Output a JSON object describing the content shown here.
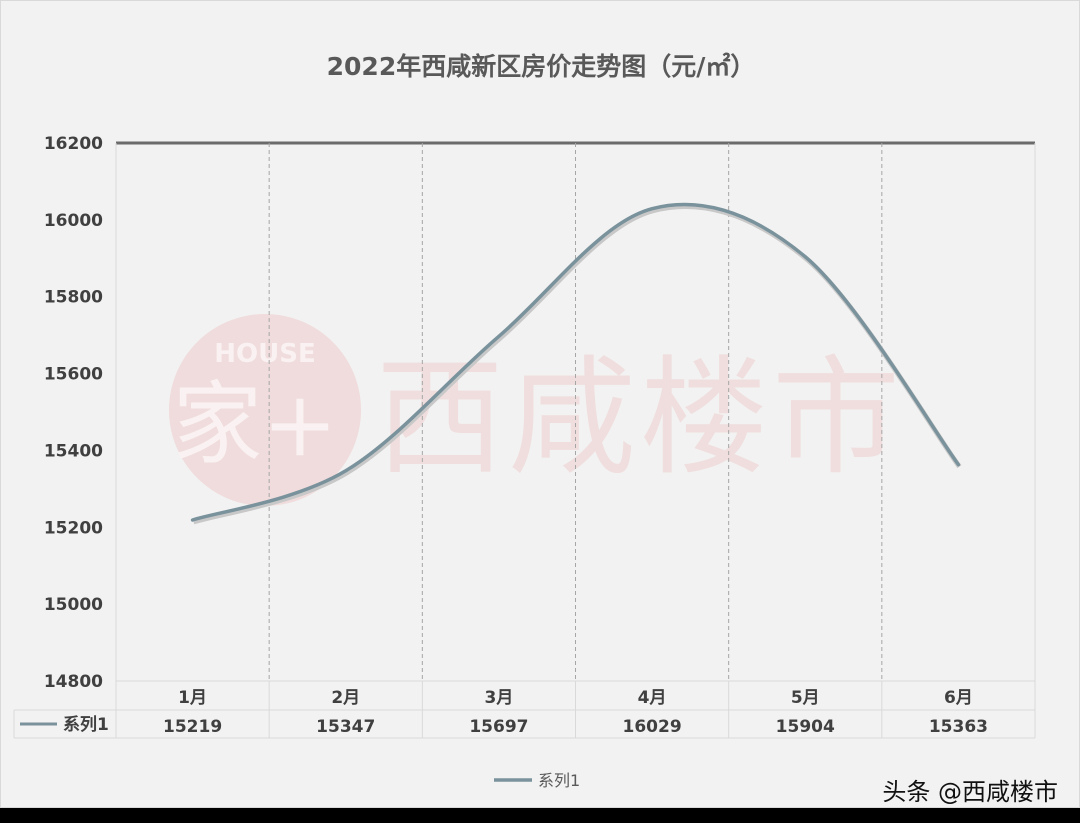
{
  "chart_data": {
    "type": "line",
    "title": "2022年西咸新区房价走势图（元/㎡）",
    "categories": [
      "1月",
      "2月",
      "3月",
      "4月",
      "5月",
      "6月"
    ],
    "series": [
      {
        "name": "系列1",
        "values": [
          15219,
          15347,
          15697,
          16029,
          15904,
          15363
        ],
        "color": "#7a929c"
      }
    ],
    "ylim": [
      14800,
      16200
    ],
    "yticks": [
      16200,
      16000,
      15800,
      15600,
      15400,
      15200,
      15000,
      14800
    ],
    "smooth": true,
    "grid": "vertical dashed",
    "data_table": true,
    "legend": "bottom"
  },
  "watermark": {
    "logo_text": "HOUSE 家+",
    "text": "西咸楼市"
  },
  "credit": "头条 @西咸楼市"
}
